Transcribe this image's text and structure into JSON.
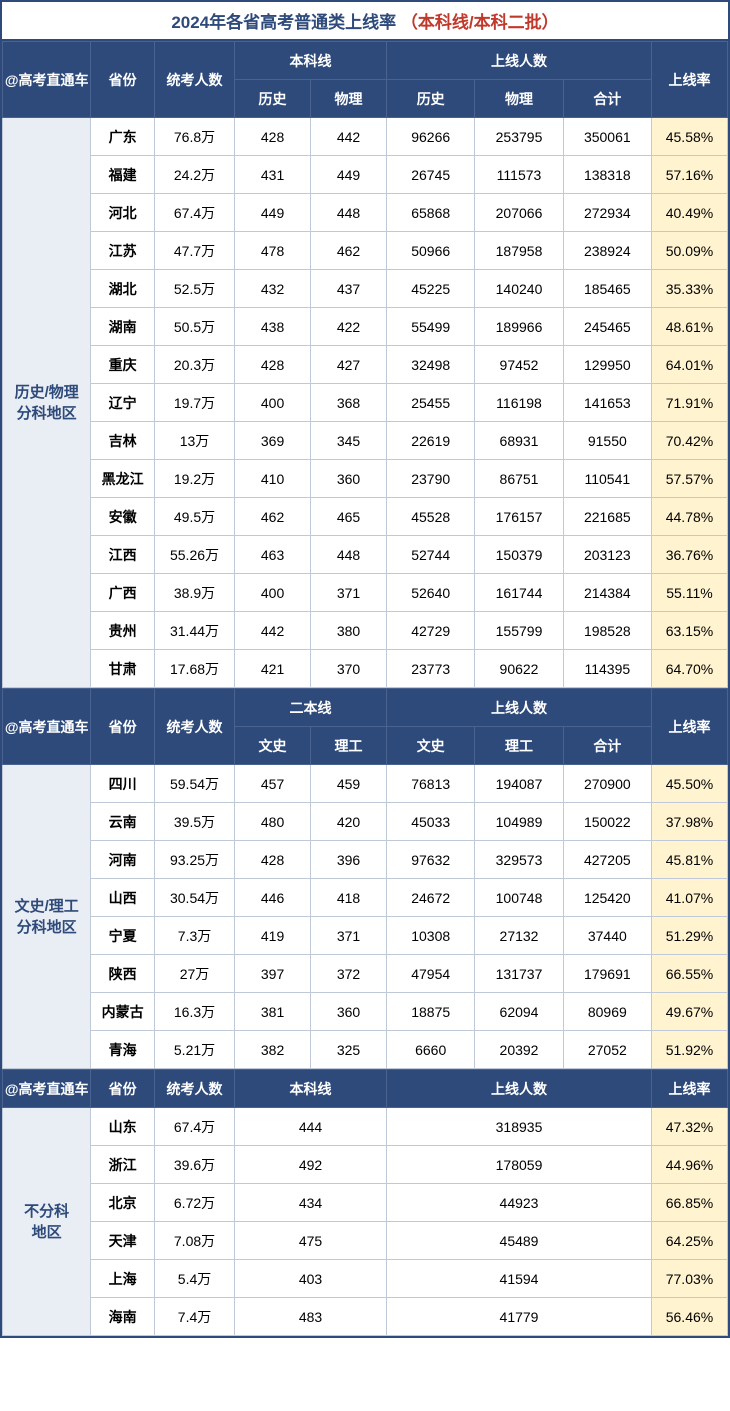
{
  "title_blue": "2024年各省高考普通类上线率",
  "title_red": "（本科线/本科二批）",
  "brand": "@高考直通车",
  "hdr": {
    "prov": "省份",
    "count": "统考人数",
    "line1": "本科线",
    "line2": "二本线",
    "pass": "上线人数",
    "rate": "上线率",
    "hist": "历史",
    "phys": "物理",
    "wen": "文史",
    "li": "理工",
    "total": "合计"
  },
  "group1": {
    "label": "历史/物理\n分科地区",
    "rows": [
      {
        "p": "广东",
        "cnt": "76.8万",
        "a": "428",
        "b": "442",
        "c": "96266",
        "d": "253795",
        "e": "350061",
        "r": "45.58%"
      },
      {
        "p": "福建",
        "cnt": "24.2万",
        "a": "431",
        "b": "449",
        "c": "26745",
        "d": "111573",
        "e": "138318",
        "r": "57.16%"
      },
      {
        "p": "河北",
        "cnt": "67.4万",
        "a": "449",
        "b": "448",
        "c": "65868",
        "d": "207066",
        "e": "272934",
        "r": "40.49%"
      },
      {
        "p": "江苏",
        "cnt": "47.7万",
        "a": "478",
        "b": "462",
        "c": "50966",
        "d": "187958",
        "e": "238924",
        "r": "50.09%"
      },
      {
        "p": "湖北",
        "cnt": "52.5万",
        "a": "432",
        "b": "437",
        "c": "45225",
        "d": "140240",
        "e": "185465",
        "r": "35.33%"
      },
      {
        "p": "湖南",
        "cnt": "50.5万",
        "a": "438",
        "b": "422",
        "c": "55499",
        "d": "189966",
        "e": "245465",
        "r": "48.61%"
      },
      {
        "p": "重庆",
        "cnt": "20.3万",
        "a": "428",
        "b": "427",
        "c": "32498",
        "d": "97452",
        "e": "129950",
        "r": "64.01%"
      },
      {
        "p": "辽宁",
        "cnt": "19.7万",
        "a": "400",
        "b": "368",
        "c": "25455",
        "d": "116198",
        "e": "141653",
        "r": "71.91%"
      },
      {
        "p": "吉林",
        "cnt": "13万",
        "a": "369",
        "b": "345",
        "c": "22619",
        "d": "68931",
        "e": "91550",
        "r": "70.42%"
      },
      {
        "p": "黑龙江",
        "cnt": "19.2万",
        "a": "410",
        "b": "360",
        "c": "23790",
        "d": "86751",
        "e": "110541",
        "r": "57.57%"
      },
      {
        "p": "安徽",
        "cnt": "49.5万",
        "a": "462",
        "b": "465",
        "c": "45528",
        "d": "176157",
        "e": "221685",
        "r": "44.78%"
      },
      {
        "p": "江西",
        "cnt": "55.26万",
        "a": "463",
        "b": "448",
        "c": "52744",
        "d": "150379",
        "e": "203123",
        "r": "36.76%"
      },
      {
        "p": "广西",
        "cnt": "38.9万",
        "a": "400",
        "b": "371",
        "c": "52640",
        "d": "161744",
        "e": "214384",
        "r": "55.11%"
      },
      {
        "p": "贵州",
        "cnt": "31.44万",
        "a": "442",
        "b": "380",
        "c": "42729",
        "d": "155799",
        "e": "198528",
        "r": "63.15%"
      },
      {
        "p": "甘肃",
        "cnt": "17.68万",
        "a": "421",
        "b": "370",
        "c": "23773",
        "d": "90622",
        "e": "114395",
        "r": "64.70%"
      }
    ]
  },
  "group2": {
    "label": "文史/理工\n分科地区",
    "rows": [
      {
        "p": "四川",
        "cnt": "59.54万",
        "a": "457",
        "b": "459",
        "c": "76813",
        "d": "194087",
        "e": "270900",
        "r": "45.50%"
      },
      {
        "p": "云南",
        "cnt": "39.5万",
        "a": "480",
        "b": "420",
        "c": "45033",
        "d": "104989",
        "e": "150022",
        "r": "37.98%"
      },
      {
        "p": "河南",
        "cnt": "93.25万",
        "a": "428",
        "b": "396",
        "c": "97632",
        "d": "329573",
        "e": "427205",
        "r": "45.81%"
      },
      {
        "p": "山西",
        "cnt": "30.54万",
        "a": "446",
        "b": "418",
        "c": "24672",
        "d": "100748",
        "e": "125420",
        "r": "41.07%"
      },
      {
        "p": "宁夏",
        "cnt": "7.3万",
        "a": "419",
        "b": "371",
        "c": "10308",
        "d": "27132",
        "e": "37440",
        "r": "51.29%"
      },
      {
        "p": "陕西",
        "cnt": "27万",
        "a": "397",
        "b": "372",
        "c": "47954",
        "d": "131737",
        "e": "179691",
        "r": "66.55%"
      },
      {
        "p": "内蒙古",
        "cnt": "16.3万",
        "a": "381",
        "b": "360",
        "c": "18875",
        "d": "62094",
        "e": "80969",
        "r": "49.67%"
      },
      {
        "p": "青海",
        "cnt": "5.21万",
        "a": "382",
        "b": "325",
        "c": "6660",
        "d": "20392",
        "e": "27052",
        "r": "51.92%"
      }
    ]
  },
  "group3": {
    "label": "不分科\n地区",
    "rows": [
      {
        "p": "山东",
        "cnt": "67.4万",
        "a": "444",
        "c": "318935",
        "r": "47.32%"
      },
      {
        "p": "浙江",
        "cnt": "39.6万",
        "a": "492",
        "c": "178059",
        "r": "44.96%"
      },
      {
        "p": "北京",
        "cnt": "6.72万",
        "a": "434",
        "c": "44923",
        "r": "66.85%"
      },
      {
        "p": "天津",
        "cnt": "7.08万",
        "a": "475",
        "c": "45489",
        "r": "64.25%"
      },
      {
        "p": "上海",
        "cnt": "5.4万",
        "a": "403",
        "c": "41594",
        "r": "77.03%"
      },
      {
        "p": "海南",
        "cnt": "7.4万",
        "a": "483",
        "c": "41779",
        "r": "56.46%"
      }
    ]
  }
}
